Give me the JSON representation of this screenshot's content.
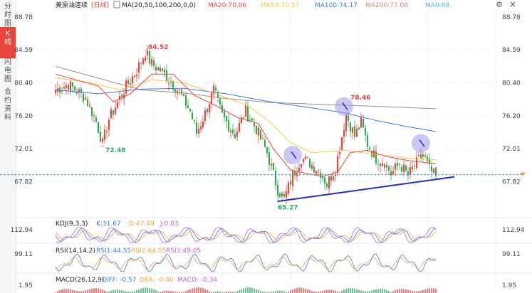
{
  "sidebar": {
    "tabs": [
      {
        "label": "分时图",
        "chars": [
          "分",
          "时",
          "图"
        ],
        "active": false
      },
      {
        "label": "K线",
        "chars": [
          "K",
          "线"
        ],
        "active": true
      },
      {
        "label": "闪电图",
        "chars": [
          "闪",
          "电",
          "图"
        ],
        "active": false
      },
      {
        "label": "合约资料",
        "chars": [
          "合",
          "约",
          "资",
          "料"
        ],
        "active": false
      }
    ]
  },
  "header": {
    "symbol": "美原油连续",
    "period": "[日线]",
    "indicator": "MA(20,50,100,200,0,0)",
    "ma_values": [
      {
        "label": "MA20:70.06",
        "color": "#e8453c"
      },
      {
        "label": "MA50:70.57",
        "color": "#f2c94c"
      },
      {
        "label": "MA100:74.17",
        "color": "#3a7bd5"
      },
      {
        "label": "MA200:77.08",
        "color": "#d4857c"
      },
      {
        "label": "MA0:68.",
        "color": "#4bb3e6"
      }
    ],
    "icons": [
      "settings-icon",
      "close-icon"
    ]
  },
  "colors": {
    "up": "#e8453c",
    "down": "#2eaa57",
    "ma20": "#e8453c",
    "ma50": "#f2c94c",
    "ma100": "#3a7bd5",
    "ma200": "#a88a7e",
    "trendline": "#2530c8",
    "marker": "#9b8fe8",
    "price_line": "#4a90d9",
    "price_tag": "#f5a623"
  },
  "chart_data": {
    "type": "candlestick",
    "y_ticks": [
      "88.78",
      "84.59",
      "80.40",
      "76.20",
      "72.01",
      "67.82"
    ],
    "ylim": [
      64.5,
      89.5
    ],
    "annotations": {
      "high_label": "84.52",
      "low_label": "72.48",
      "low2_label": "65.27",
      "high2_label": "78.46"
    },
    "current_price": 68.7,
    "close_anchors": [
      [
        0,
        79.5
      ],
      [
        6,
        80.2
      ],
      [
        14,
        78.5
      ],
      [
        19,
        75.5
      ],
      [
        22,
        72.6
      ],
      [
        25,
        75.8
      ],
      [
        32,
        79.5
      ],
      [
        38,
        82.0
      ],
      [
        42,
        84.3
      ],
      [
        45,
        82.8
      ],
      [
        50,
        81.8
      ],
      [
        54,
        80.5
      ],
      [
        58,
        79.2
      ],
      [
        63,
        76.8
      ],
      [
        66,
        74.0
      ],
      [
        70,
        76.5
      ],
      [
        74,
        79.5
      ],
      [
        78,
        76.2
      ],
      [
        84,
        73.8
      ],
      [
        89,
        76.8
      ],
      [
        94,
        74.5
      ],
      [
        99,
        71.5
      ],
      [
        104,
        66.8
      ],
      [
        107,
        65.6
      ],
      [
        111,
        68.6
      ],
      [
        115,
        70.8
      ],
      [
        119,
        70.2
      ],
      [
        124,
        69.0
      ],
      [
        127,
        67.5
      ],
      [
        131,
        69.5
      ],
      [
        136,
        76.4
      ],
      [
        140,
        73.6
      ],
      [
        143,
        75.3
      ],
      [
        146,
        72.6
      ],
      [
        150,
        70.8
      ],
      [
        154,
        70.3
      ],
      [
        157,
        68.8
      ],
      [
        161,
        70.1
      ],
      [
        165,
        68.6
      ],
      [
        168,
        69.8
      ],
      [
        172,
        71.3
      ],
      [
        175,
        69.4
      ],
      [
        178,
        68.3
      ]
    ],
    "ma20_anchors": [
      [
        0,
        81.5
      ],
      [
        20,
        80.0
      ],
      [
        27,
        78.0
      ],
      [
        35,
        79.0
      ],
      [
        45,
        81.5
      ],
      [
        55,
        81.5
      ],
      [
        65,
        78.8
      ],
      [
        75,
        77.5
      ],
      [
        85,
        76.0
      ],
      [
        95,
        75.2
      ],
      [
        102,
        72.0
      ],
      [
        110,
        69.3
      ],
      [
        118,
        68.8
      ],
      [
        125,
        68.5
      ],
      [
        132,
        69.0
      ],
      [
        138,
        71.5
      ],
      [
        146,
        71.8
      ],
      [
        155,
        71.0
      ],
      [
        165,
        70.5
      ],
      [
        178,
        70.1
      ]
    ],
    "ma50_anchors": [
      [
        0,
        81.0
      ],
      [
        15,
        80.5
      ],
      [
        30,
        79.5
      ],
      [
        45,
        80.8
      ],
      [
        60,
        80.4
      ],
      [
        75,
        79.0
      ],
      [
        90,
        77.5
      ],
      [
        100,
        75.5
      ],
      [
        110,
        72.8
      ],
      [
        120,
        71.5
      ],
      [
        135,
        71.8
      ],
      [
        150,
        71.3
      ],
      [
        165,
        70.8
      ],
      [
        178,
        70.6
      ]
    ],
    "ma100_anchors": [
      [
        0,
        79.5
      ],
      [
        20,
        79.0
      ],
      [
        40,
        79.6
      ],
      [
        60,
        79.7
      ],
      [
        80,
        79.0
      ],
      [
        100,
        78.0
      ],
      [
        120,
        77.2
      ],
      [
        135,
        76.6
      ],
      [
        150,
        75.6
      ],
      [
        165,
        74.8
      ],
      [
        178,
        74.2
      ]
    ],
    "ma200_anchors": [
      [
        0,
        82.5
      ],
      [
        20,
        81.0
      ],
      [
        40,
        79.5
      ],
      [
        60,
        79.1
      ],
      [
        80,
        78.4
      ],
      [
        100,
        77.9
      ],
      [
        120,
        77.7
      ],
      [
        140,
        77.5
      ],
      [
        160,
        77.3
      ],
      [
        178,
        77.1
      ]
    ],
    "trendline": [
      [
        104,
        65.3
      ],
      [
        178,
        68.2
      ]
    ],
    "markers": [
      [
        111,
        71.2
      ],
      [
        135,
        77.4
      ],
      [
        171,
        72.7
      ]
    ],
    "kdj": {
      "label": "KDJ(9,3,3)",
      "k": "K:31.67",
      "d": "D:47.49",
      "j": "J:0.03",
      "tick": "112.94"
    },
    "rsi": {
      "label": "RSI(14,14,2)",
      "rsi1": "RSI1:44.55",
      "rsi2": "RSI2:44.55",
      "rsi3": "RSI3:49.05",
      "tick": "99.11"
    },
    "macd": {
      "label": "MACD(26,12,9)",
      "diff": "DIFF: -0.57",
      "dea": "DEA: -0.40",
      "macd": "MACD: -0.34",
      "tick": "1.95"
    }
  }
}
